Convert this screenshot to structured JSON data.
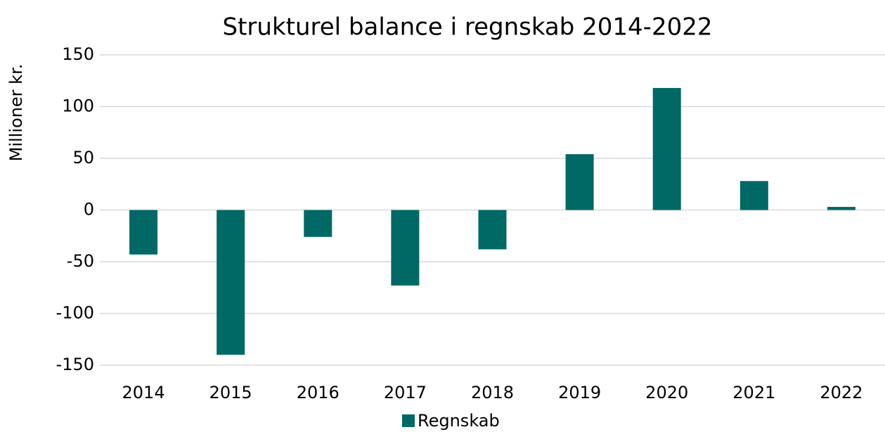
{
  "chart_data": {
    "type": "bar",
    "title": "Strukturel balance i regnskab 2014-2022",
    "ylabel": "Millioner kr.",
    "categories": [
      "2014",
      "2015",
      "2016",
      "2017",
      "2018",
      "2019",
      "2020",
      "2021",
      "2022"
    ],
    "series": [
      {
        "name": "Regnskab",
        "color": "#006865",
        "values": [
          -43,
          -140,
          -26,
          -73,
          -38,
          54,
          118,
          28,
          3
        ]
      }
    ],
    "ylim": [
      -150,
      150
    ],
    "yticks": [
      -150,
      -100,
      -50,
      0,
      50,
      100,
      150
    ],
    "grid": true,
    "legend": "bottom"
  }
}
